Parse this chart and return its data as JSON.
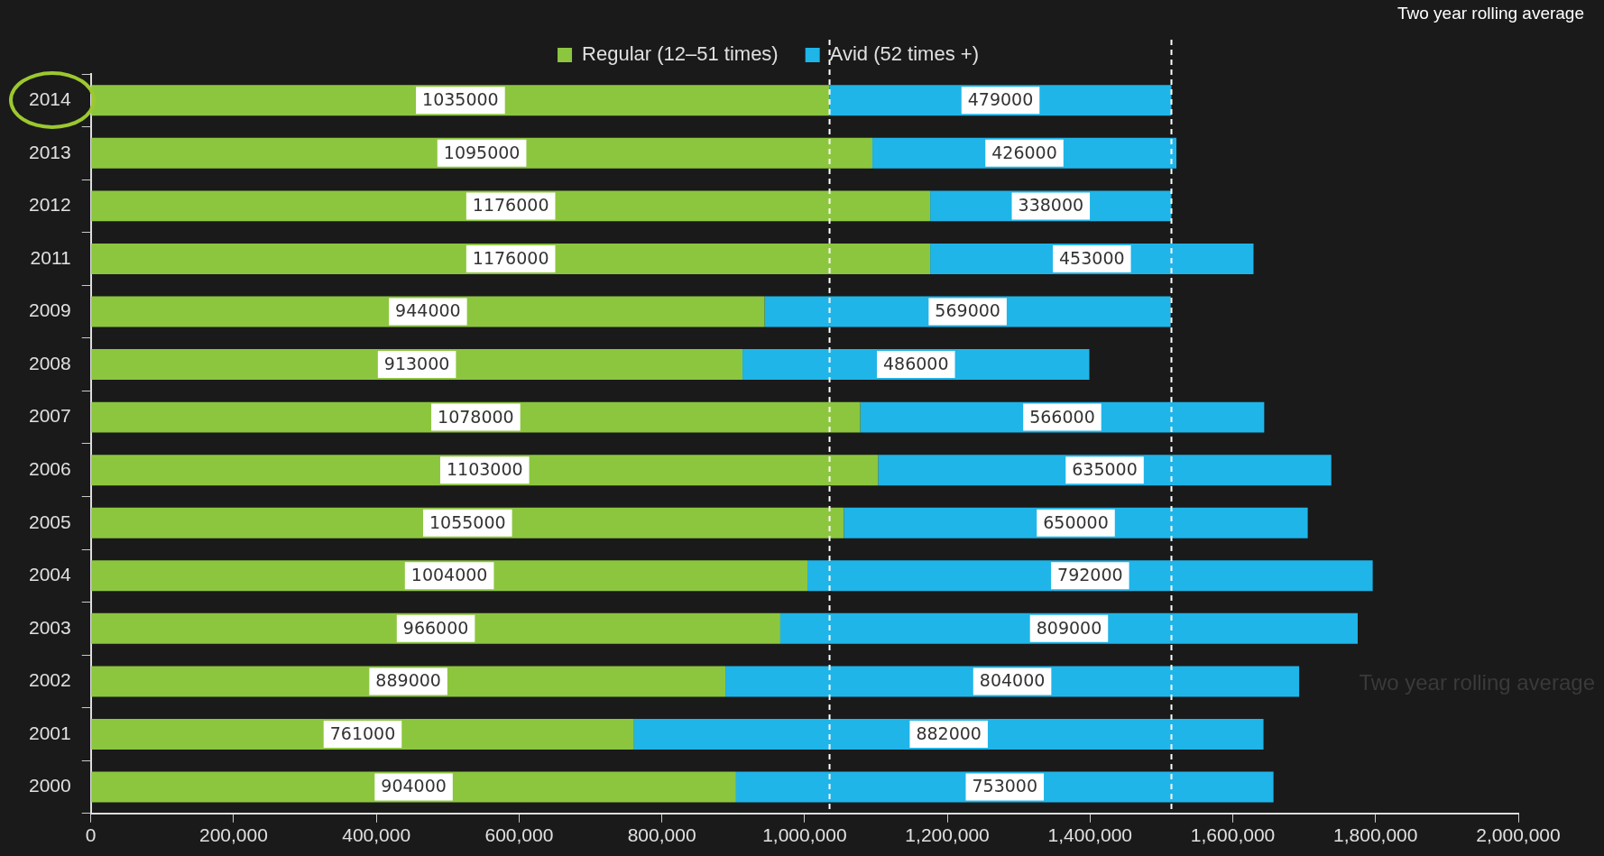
{
  "chart_data": {
    "type": "bar",
    "orientation": "horizontal",
    "stacked": true,
    "categories": [
      "2014",
      "2013",
      "2012",
      "2011",
      "2009",
      "2008",
      "2007",
      "2006",
      "2005",
      "2004",
      "2003",
      "2002",
      "2001",
      "2000"
    ],
    "series": [
      {
        "name": "Regular (12–51 times)",
        "color": "#8cc63f",
        "values": [
          1035000,
          1095000,
          1176000,
          1176000,
          944000,
          913000,
          1078000,
          1103000,
          1055000,
          1004000,
          966000,
          889000,
          761000,
          904000
        ]
      },
      {
        "name": "Avid (52 times +)",
        "color": "#1fb5e8",
        "values": [
          479000,
          426000,
          338000,
          453000,
          569000,
          486000,
          566000,
          635000,
          650000,
          792000,
          809000,
          804000,
          882000,
          753000
        ]
      }
    ],
    "xlim": [
      0,
      2000000
    ],
    "xticks": [
      0,
      {
        "value": 200000,
        "label": "200,000"
      },
      {
        "value": 400000,
        "label": "400,000"
      },
      {
        "value": 600000,
        "label": "600,000"
      },
      {
        "value": 800000,
        "label": "800,000"
      },
      {
        "value": 1000000,
        "label": "1,000,000"
      },
      {
        "value": 1200000,
        "label": "1,200,000"
      },
      {
        "value": 1400000,
        "label": "1,400,000"
      },
      {
        "value": 1600000,
        "label": "1,600,000"
      },
      {
        "value": 1800000,
        "label": "1,800,000"
      },
      {
        "value": 2000000,
        "label": "2,000,000"
      }
    ],
    "ref_lines": [
      {
        "axis": "x",
        "value": 1035000,
        "color": "#ffffff",
        "line_style": "dashed"
      },
      {
        "axis": "x",
        "value": 1514000,
        "color": "#ffffff",
        "line_style": "dashed"
      }
    ],
    "annotations": [
      "Two year rolling average",
      "Two year rolling average"
    ],
    "data_labels": true,
    "grid": false,
    "legend": "top"
  }
}
